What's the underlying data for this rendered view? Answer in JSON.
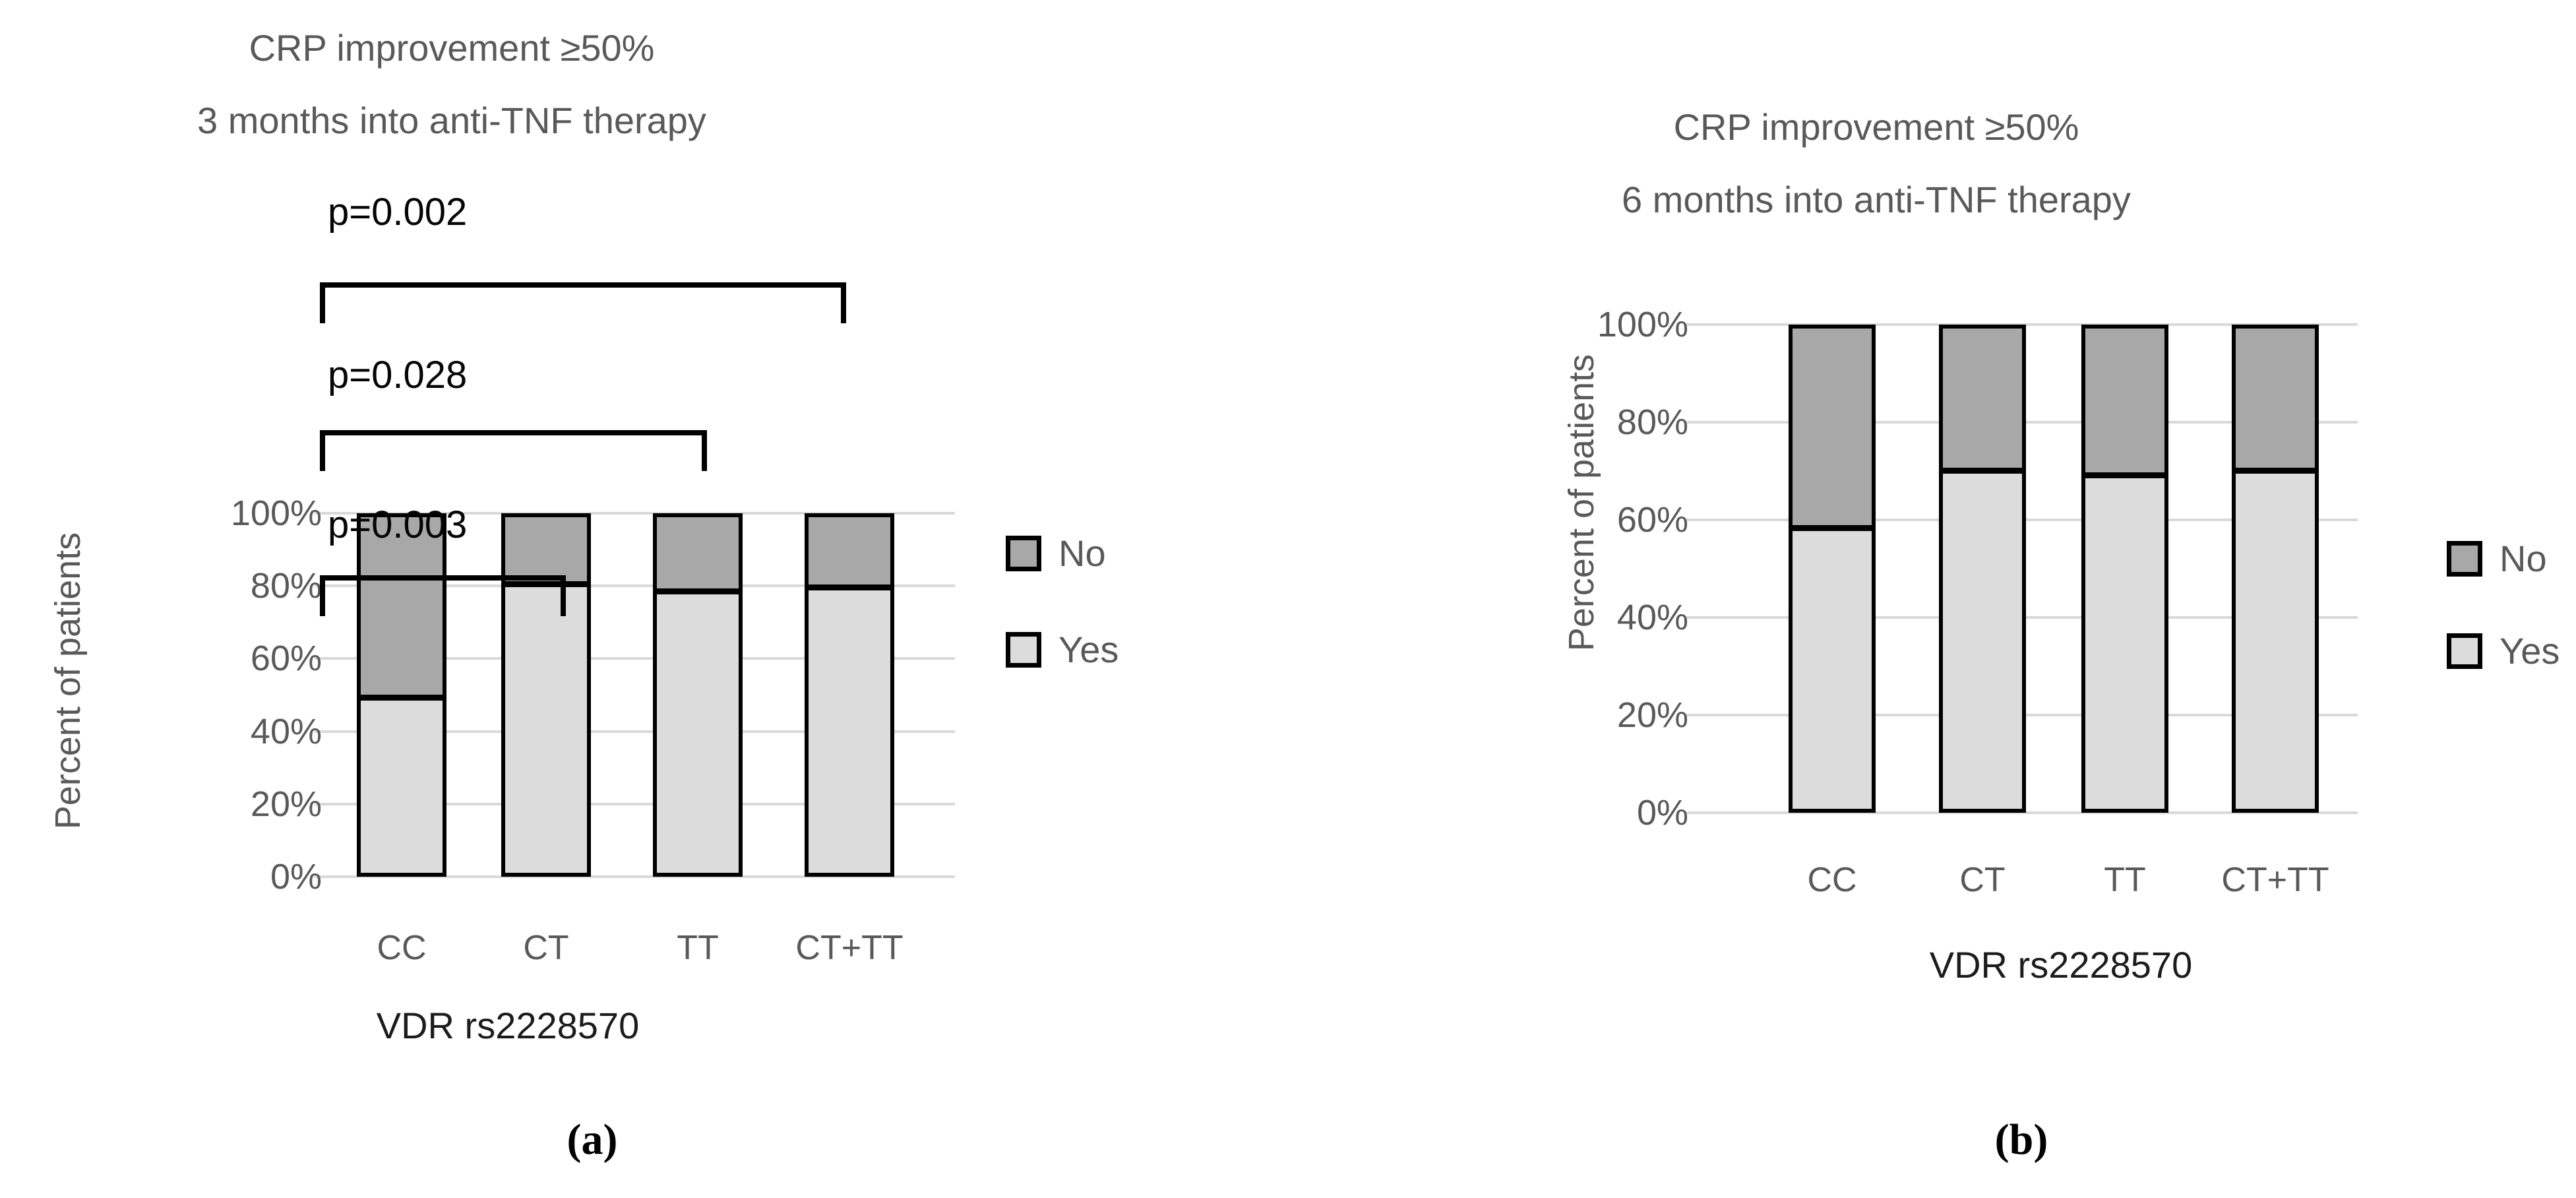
{
  "figure": {
    "background": "#ffffff",
    "legend_labels": [
      "No",
      "Yes"
    ],
    "colors": {
      "no_fill": "#a8a8a8",
      "yes_fill": "#dcdcdc",
      "bar_border": "#000000",
      "gridline": "#d9d9d9",
      "axis_text": "#595959",
      "x_axis_title_text": "#1c1c1c",
      "p_text": "#050505"
    }
  },
  "chart_data": [
    {
      "type": "bar",
      "stacked": true,
      "panel_caption": "(a)",
      "title_line1": "CRP improvement ≥50%",
      "title_line2": "3 months into anti-TNF therapy",
      "title": "CRP improvement ≥50% 3 months into anti-TNF therapy",
      "xlabel": "VDR rs2228570",
      "ylabel": "Percent of patients",
      "categories": [
        "CC",
        "CT",
        "TT",
        "CT+TT"
      ],
      "series": [
        {
          "name": "Yes",
          "values": [
            50,
            82,
            80,
            81
          ],
          "color": "#dcdcdc"
        },
        {
          "name": "No",
          "values": [
            50,
            18,
            20,
            19
          ],
          "color": "#a8a8a8"
        }
      ],
      "y_ticks": [
        "100%",
        "80%",
        "60%",
        "40%",
        "20%",
        "0%"
      ],
      "ylim": [
        0,
        100
      ],
      "grid": true,
      "legend_position": "right",
      "legend": [
        {
          "label": "No",
          "color": "#a8a8a8"
        },
        {
          "label": "Yes",
          "color": "#dcdcdc"
        }
      ],
      "p_annotations": [
        {
          "label": "p=0.002",
          "from": "CC",
          "to": "CT+TT"
        },
        {
          "label": "p=0.028",
          "from": "CC",
          "to": "TT"
        },
        {
          "label": "p=0.003",
          "from": "CC",
          "to": "CT"
        }
      ]
    },
    {
      "type": "bar",
      "stacked": true,
      "panel_caption": "(b)",
      "title_line1": "CRP improvement ≥50%",
      "title_line2": "6 months into anti-TNF therapy",
      "title": "CRP improvement ≥50% 6 months into anti-TNF therapy",
      "xlabel": "VDR rs2228570",
      "ylabel": "Percent of patients",
      "categories": [
        "CC",
        "CT",
        "TT",
        "CT+TT"
      ],
      "series": [
        {
          "name": "Yes",
          "values": [
            59,
            71,
            70,
            71
          ],
          "color": "#dcdcdc"
        },
        {
          "name": "No",
          "values": [
            41,
            29,
            30,
            29
          ],
          "color": "#a8a8a8"
        }
      ],
      "y_ticks": [
        "100%",
        "80%",
        "60%",
        "40%",
        "20%",
        "0%"
      ],
      "ylim": [
        0,
        100
      ],
      "grid": true,
      "legend_position": "right",
      "legend": [
        {
          "label": "No",
          "color": "#a8a8a8"
        },
        {
          "label": "Yes",
          "color": "#dcdcdc"
        }
      ],
      "p_annotations": []
    }
  ]
}
